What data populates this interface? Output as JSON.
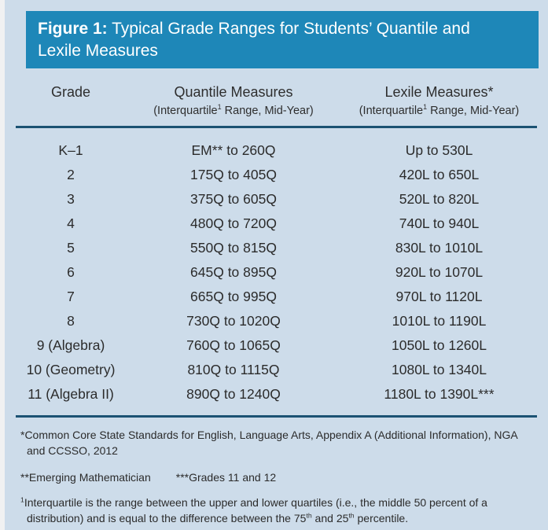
{
  "figure": {
    "label": "Figure 1:",
    "title": " Typical Grade Ranges for Students’ Quantile and Lexile Measures"
  },
  "table": {
    "columns": {
      "grade": {
        "title": "Grade"
      },
      "quantile": {
        "title": "Quantile Measures",
        "subtitle_pre": "(Interquartile",
        "subtitle_sup": "1",
        "subtitle_post": " Range, Mid-Year)"
      },
      "lexile": {
        "title": "Lexile Measures*",
        "subtitle_pre": "(Interquartile",
        "subtitle_sup": "1",
        "subtitle_post": " Range, Mid-Year)"
      }
    },
    "rows": [
      {
        "grade": "K–1",
        "quantile": "EM** to 260Q",
        "lexile": "Up to 530L"
      },
      {
        "grade": "2",
        "quantile": "175Q to 405Q",
        "lexile": "420L to 650L"
      },
      {
        "grade": "3",
        "quantile": "375Q to 605Q",
        "lexile": "520L to 820L"
      },
      {
        "grade": "4",
        "quantile": "480Q to 720Q",
        "lexile": "740L to 940L"
      },
      {
        "grade": "5",
        "quantile": "550Q to 815Q",
        "lexile": "830L to 1010L"
      },
      {
        "grade": "6",
        "quantile": "645Q to 895Q",
        "lexile": "920L to 1070L"
      },
      {
        "grade": "7",
        "quantile": "665Q to 995Q",
        "lexile": "970L to 1120L"
      },
      {
        "grade": "8",
        "quantile": "730Q to 1020Q",
        "lexile": "1010L to 1190L"
      },
      {
        "grade": "9 (Algebra)",
        "quantile": "760Q to 1065Q",
        "lexile": "1050L to 1260L"
      },
      {
        "grade": "10 (Geometry)",
        "quantile": "810Q to 1115Q",
        "lexile": "1080L to 1340L"
      },
      {
        "grade": "11 (Algebra II)",
        "quantile": "890Q to 1240Q",
        "lexile": "1180L to 1390L***"
      }
    ]
  },
  "footnotes": {
    "source": "*Common Core State Standards for English, Language Arts, Appendix A (Additional Information), NGA and CCSSO, 2012",
    "marker_double": "**Emerging Mathematician",
    "marker_triple": "***Grades 11 and 12",
    "interquartile": {
      "marker": "1",
      "part1": "Interquartile is the range between the upper and lower quartiles (i.e., the middle 50 percent of a distribution) and is equal to the difference between the ",
      "num1": "75",
      "sup1": "th",
      "part2": " and ",
      "num2": "25",
      "sup2": "th",
      "part3": " percentile."
    }
  },
  "colors": {
    "header_background": "#1e87b8",
    "panel_background": "#cddcea",
    "rule": "#1b5273",
    "header_text": "#ffffff",
    "body_text": "#2b2b2b"
  }
}
